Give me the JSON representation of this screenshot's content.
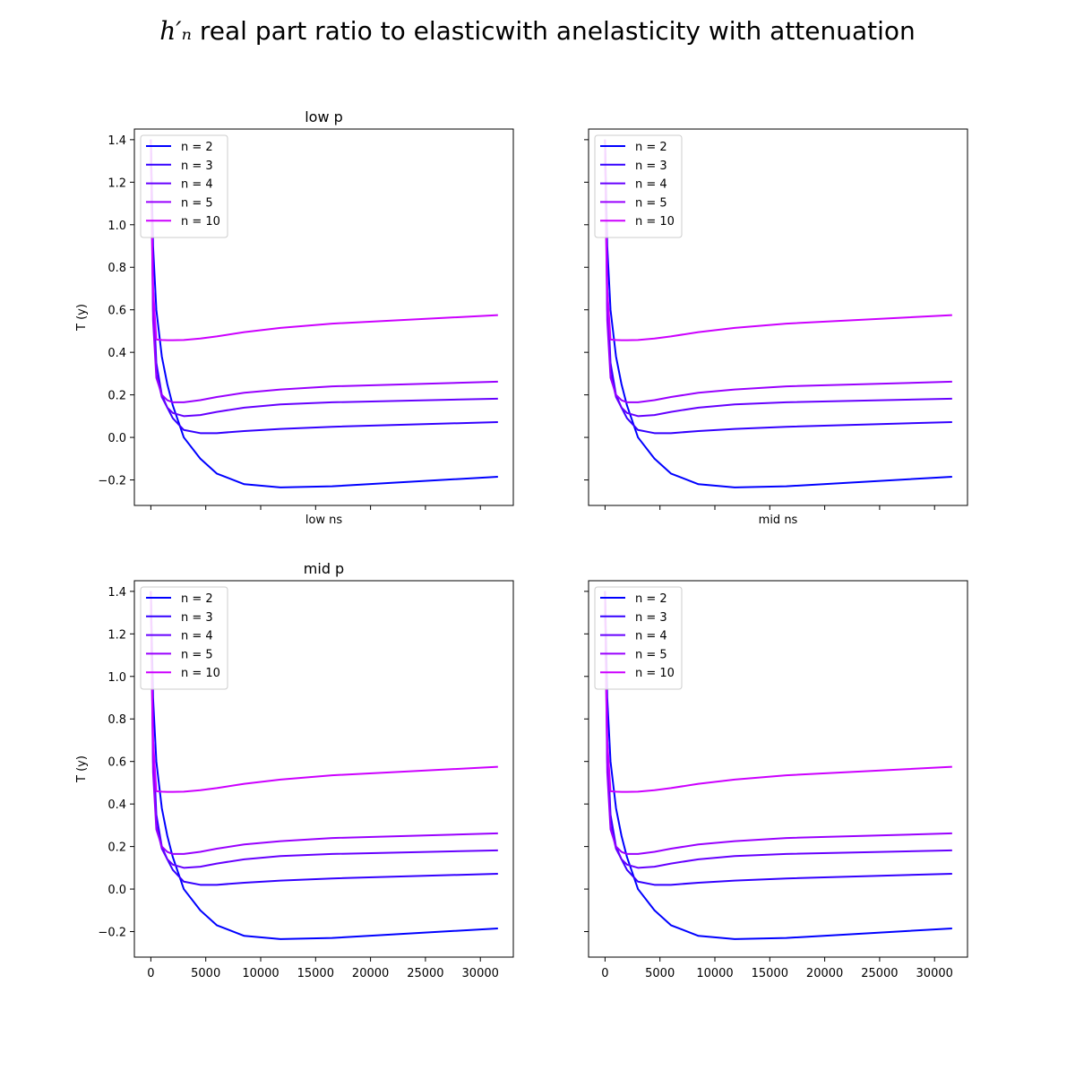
{
  "figure": {
    "title_math": "h′ₙ",
    "title_text": " real part ratio to elasticwith anelasticity with attenuation"
  },
  "chart_data": [
    {
      "type": "line",
      "title": "low p",
      "xlabel": "low ns",
      "ylabel": "T (y)",
      "xlim": [
        -1500,
        33000
      ],
      "ylim": [
        -0.32,
        1.45
      ],
      "xticks": [
        0,
        5000,
        10000,
        15000,
        20000,
        25000,
        30000
      ],
      "yticks": [
        -0.2,
        0.0,
        0.2,
        0.4,
        0.6,
        0.8,
        1.0,
        1.2,
        1.4
      ],
      "show_xticklabels": false,
      "show_yticklabels": true,
      "grid": false,
      "legend_position": "top-left",
      "x": [
        0,
        200,
        500,
        1000,
        1500,
        2000,
        3000,
        4500,
        6000,
        8500,
        11800,
        16500,
        31600
      ],
      "series": [
        {
          "name": "n = 2",
          "color": "#0000ff",
          "values": [
            1.4,
            0.9,
            0.6,
            0.38,
            0.25,
            0.15,
            0.0,
            -0.1,
            -0.17,
            -0.22,
            -0.235,
            -0.23,
            -0.185
          ]
        },
        {
          "name": "n = 3",
          "color": "#3300ff",
          "values": [
            1.4,
            0.7,
            0.35,
            0.2,
            0.14,
            0.09,
            0.035,
            0.02,
            0.02,
            0.03,
            0.04,
            0.05,
            0.072
          ]
        },
        {
          "name": "n = 4",
          "color": "#6600ff",
          "values": [
            1.4,
            0.6,
            0.3,
            0.19,
            0.14,
            0.115,
            0.1,
            0.105,
            0.12,
            0.14,
            0.155,
            0.165,
            0.182
          ]
        },
        {
          "name": "n = 5",
          "color": "#9900ff",
          "values": [
            1.4,
            0.55,
            0.28,
            0.2,
            0.175,
            0.165,
            0.165,
            0.175,
            0.19,
            0.21,
            0.225,
            0.24,
            0.262
          ]
        },
        {
          "name": "n = 10",
          "color": "#cc00ff",
          "values": [
            1.4,
            0.7,
            0.46,
            0.458,
            0.457,
            0.457,
            0.458,
            0.465,
            0.475,
            0.495,
            0.515,
            0.535,
            0.575
          ]
        }
      ]
    },
    {
      "type": "line",
      "title": "",
      "xlabel": "mid ns",
      "ylabel": "",
      "xlim": [
        -1500,
        33000
      ],
      "ylim": [
        -0.32,
        1.45
      ],
      "xticks": [
        0,
        5000,
        10000,
        15000,
        20000,
        25000,
        30000
      ],
      "yticks": [
        -0.2,
        0.0,
        0.2,
        0.4,
        0.6,
        0.8,
        1.0,
        1.2,
        1.4
      ],
      "show_xticklabels": false,
      "show_yticklabels": false,
      "grid": false,
      "legend_position": "top-left",
      "x": [
        0,
        200,
        500,
        1000,
        1500,
        2000,
        3000,
        4500,
        6000,
        8500,
        11800,
        16500,
        31600
      ],
      "series": [
        {
          "name": "n = 2",
          "color": "#0000ff",
          "values": [
            1.4,
            0.9,
            0.6,
            0.38,
            0.25,
            0.15,
            0.0,
            -0.1,
            -0.17,
            -0.22,
            -0.235,
            -0.23,
            -0.185
          ]
        },
        {
          "name": "n = 3",
          "color": "#3300ff",
          "values": [
            1.4,
            0.7,
            0.35,
            0.2,
            0.14,
            0.09,
            0.035,
            0.02,
            0.02,
            0.03,
            0.04,
            0.05,
            0.072
          ]
        },
        {
          "name": "n = 4",
          "color": "#6600ff",
          "values": [
            1.4,
            0.6,
            0.3,
            0.19,
            0.14,
            0.115,
            0.1,
            0.105,
            0.12,
            0.14,
            0.155,
            0.165,
            0.182
          ]
        },
        {
          "name": "n = 5",
          "color": "#9900ff",
          "values": [
            1.4,
            0.55,
            0.28,
            0.2,
            0.175,
            0.165,
            0.165,
            0.175,
            0.19,
            0.21,
            0.225,
            0.24,
            0.262
          ]
        },
        {
          "name": "n = 10",
          "color": "#cc00ff",
          "values": [
            1.4,
            0.7,
            0.46,
            0.458,
            0.457,
            0.457,
            0.458,
            0.465,
            0.475,
            0.495,
            0.515,
            0.535,
            0.575
          ]
        }
      ]
    },
    {
      "type": "line",
      "title": "mid p",
      "xlabel": "",
      "ylabel": "T (y)",
      "xlim": [
        -1500,
        33000
      ],
      "ylim": [
        -0.32,
        1.45
      ],
      "xticks": [
        0,
        5000,
        10000,
        15000,
        20000,
        25000,
        30000
      ],
      "yticks": [
        -0.2,
        0.0,
        0.2,
        0.4,
        0.6,
        0.8,
        1.0,
        1.2,
        1.4
      ],
      "show_xticklabels": true,
      "show_yticklabels": true,
      "grid": false,
      "legend_position": "top-left",
      "x": [
        0,
        200,
        500,
        1000,
        1500,
        2000,
        3000,
        4500,
        6000,
        8500,
        11800,
        16500,
        31600
      ],
      "series": [
        {
          "name": "n = 2",
          "color": "#0000ff",
          "values": [
            1.4,
            0.9,
            0.6,
            0.38,
            0.25,
            0.15,
            0.0,
            -0.1,
            -0.17,
            -0.22,
            -0.235,
            -0.23,
            -0.185
          ]
        },
        {
          "name": "n = 3",
          "color": "#3300ff",
          "values": [
            1.4,
            0.7,
            0.35,
            0.2,
            0.14,
            0.09,
            0.035,
            0.02,
            0.02,
            0.03,
            0.04,
            0.05,
            0.072
          ]
        },
        {
          "name": "n = 4",
          "color": "#6600ff",
          "values": [
            1.4,
            0.6,
            0.3,
            0.19,
            0.14,
            0.115,
            0.1,
            0.105,
            0.12,
            0.14,
            0.155,
            0.165,
            0.182
          ]
        },
        {
          "name": "n = 5",
          "color": "#9900ff",
          "values": [
            1.4,
            0.55,
            0.28,
            0.2,
            0.175,
            0.165,
            0.165,
            0.175,
            0.19,
            0.21,
            0.225,
            0.24,
            0.262
          ]
        },
        {
          "name": "n = 10",
          "color": "#cc00ff",
          "values": [
            1.4,
            0.7,
            0.46,
            0.458,
            0.457,
            0.457,
            0.458,
            0.465,
            0.475,
            0.495,
            0.515,
            0.535,
            0.575
          ]
        }
      ]
    },
    {
      "type": "line",
      "title": "",
      "xlabel": "",
      "ylabel": "",
      "xlim": [
        -1500,
        33000
      ],
      "ylim": [
        -0.32,
        1.45
      ],
      "xticks": [
        0,
        5000,
        10000,
        15000,
        20000,
        25000,
        30000
      ],
      "yticks": [
        -0.2,
        0.0,
        0.2,
        0.4,
        0.6,
        0.8,
        1.0,
        1.2,
        1.4
      ],
      "show_xticklabels": true,
      "show_yticklabels": false,
      "grid": false,
      "legend_position": "top-left",
      "x": [
        0,
        200,
        500,
        1000,
        1500,
        2000,
        3000,
        4500,
        6000,
        8500,
        11800,
        16500,
        31600
      ],
      "series": [
        {
          "name": "n = 2",
          "color": "#0000ff",
          "values": [
            1.4,
            0.9,
            0.6,
            0.38,
            0.25,
            0.15,
            0.0,
            -0.1,
            -0.17,
            -0.22,
            -0.235,
            -0.23,
            -0.185
          ]
        },
        {
          "name": "n = 3",
          "color": "#3300ff",
          "values": [
            1.4,
            0.7,
            0.35,
            0.2,
            0.14,
            0.09,
            0.035,
            0.02,
            0.02,
            0.03,
            0.04,
            0.05,
            0.072
          ]
        },
        {
          "name": "n = 4",
          "color": "#6600ff",
          "values": [
            1.4,
            0.6,
            0.3,
            0.19,
            0.14,
            0.115,
            0.1,
            0.105,
            0.12,
            0.14,
            0.155,
            0.165,
            0.182
          ]
        },
        {
          "name": "n = 5",
          "color": "#9900ff",
          "values": [
            1.4,
            0.55,
            0.28,
            0.2,
            0.175,
            0.165,
            0.165,
            0.175,
            0.19,
            0.21,
            0.225,
            0.24,
            0.262
          ]
        },
        {
          "name": "n = 10",
          "color": "#cc00ff",
          "values": [
            1.4,
            0.7,
            0.46,
            0.458,
            0.457,
            0.457,
            0.458,
            0.465,
            0.475,
            0.495,
            0.515,
            0.535,
            0.575
          ]
        }
      ]
    }
  ]
}
